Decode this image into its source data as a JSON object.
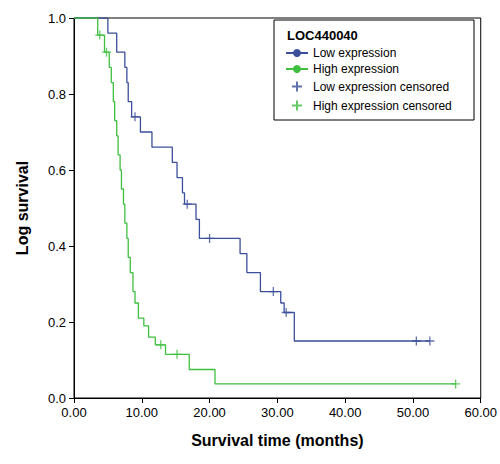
{
  "chart_data": {
    "type": "survival",
    "x_label": "Survival time (months)",
    "y_label": "Log survival",
    "legend_title": "LOC440040",
    "legend": "upper right",
    "grid": false,
    "xlim": [
      0,
      60
    ],
    "xticks": [
      {
        "value": 0,
        "label": "0.00"
      },
      {
        "value": 10,
        "label": "10.00"
      },
      {
        "value": 20,
        "label": "20.00"
      },
      {
        "value": 30,
        "label": "30.00"
      },
      {
        "value": 40,
        "label": "40.00"
      },
      {
        "value": 50,
        "label": "50.00"
      },
      {
        "value": 60,
        "label": "60.00"
      }
    ],
    "ylim": [
      0,
      1
    ],
    "yticks": [
      {
        "value": 0,
        "label": "0.0"
      },
      0.2,
      0.4,
      0.6,
      0.8,
      {
        "value": 1,
        "label": "1.0"
      }
    ],
    "series": [
      {
        "name": "Low expression",
        "type": "step",
        "color": "#3b4f9a",
        "x": [
          0,
          5.0,
          6.3,
          7.5,
          7.8,
          8.0,
          8.5,
          9.8,
          11.5,
          14.5,
          15.2,
          16.0,
          16.3,
          18.0,
          18.5,
          24.5,
          25.5,
          27.5,
          30.5,
          31.0,
          32.5,
          52.5
        ],
        "values": [
          1.0,
          0.96,
          0.91,
          0.87,
          0.83,
          0.78,
          0.74,
          0.7,
          0.66,
          0.62,
          0.58,
          0.54,
          0.51,
          0.47,
          0.42,
          0.38,
          0.33,
          0.28,
          0.25,
          0.225,
          0.15,
          0.15
        ]
      },
      {
        "name": "High expression",
        "type": "step",
        "color": "#3fbf3f",
        "x": [
          0,
          3.5,
          4.5,
          5.2,
          5.5,
          5.8,
          6.0,
          6.3,
          6.5,
          6.8,
          7.0,
          7.3,
          7.5,
          7.8,
          8.0,
          8.3,
          8.7,
          9.0,
          9.5,
          10.3,
          11.0,
          12.0,
          13.5,
          17.0,
          20.8,
          56.3
        ],
        "values": [
          1.0,
          0.955,
          0.91,
          0.87,
          0.83,
          0.78,
          0.73,
          0.69,
          0.64,
          0.6,
          0.55,
          0.51,
          0.46,
          0.42,
          0.37,
          0.33,
          0.28,
          0.25,
          0.21,
          0.19,
          0.16,
          0.14,
          0.115,
          0.075,
          0.037,
          0.037
        ]
      },
      {
        "name": "Low expression censored",
        "type": "scatter",
        "marker": "plus",
        "color": "#3b4f9a",
        "x": [
          9.0,
          16.7,
          20.0,
          29.4,
          31.3,
          50.5,
          52.5
        ],
        "values": [
          0.74,
          0.51,
          0.42,
          0.28,
          0.225,
          0.15,
          0.15
        ]
      },
      {
        "name": "High expression censored",
        "type": "scatter",
        "marker": "plus",
        "color": "#3fbf3f",
        "x": [
          3.8,
          4.8,
          12.8,
          15.2,
          56.3
        ],
        "values": [
          0.955,
          0.91,
          0.14,
          0.115,
          0.037
        ]
      }
    ]
  }
}
